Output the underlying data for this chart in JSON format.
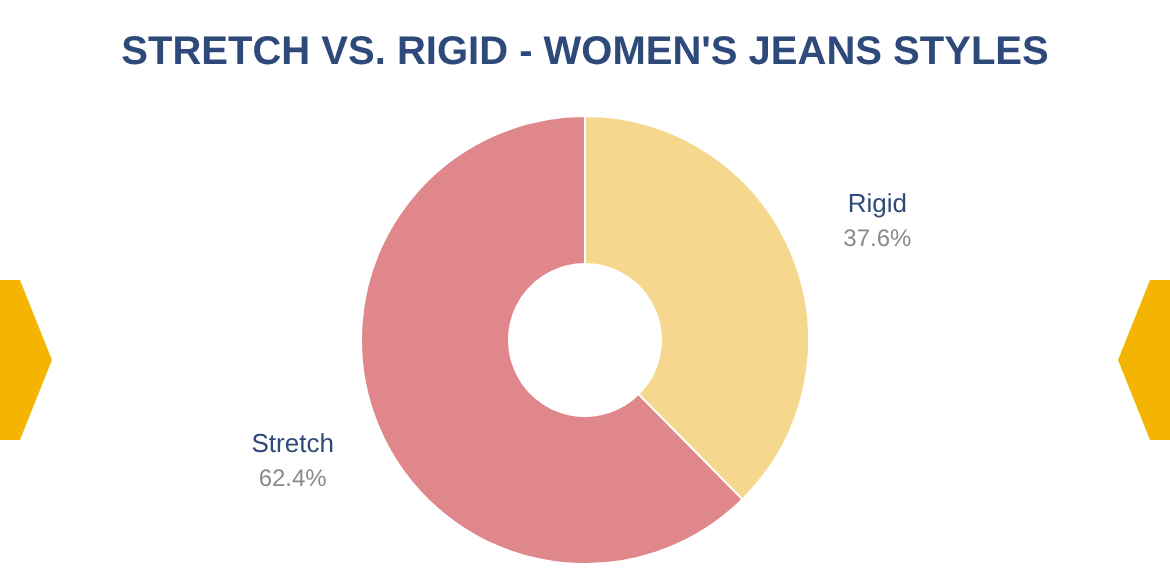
{
  "chart_data": {
    "type": "donut",
    "title": "STRETCH VS. RIGID - WOMEN'S JEANS STYLES",
    "categories": [
      "Rigid",
      "Stretch"
    ],
    "values": [
      37.6,
      62.4
    ],
    "colors": [
      "#f5d78e",
      "#e0878b"
    ],
    "value_labels": [
      "37.6%",
      "62.4%"
    ]
  }
}
